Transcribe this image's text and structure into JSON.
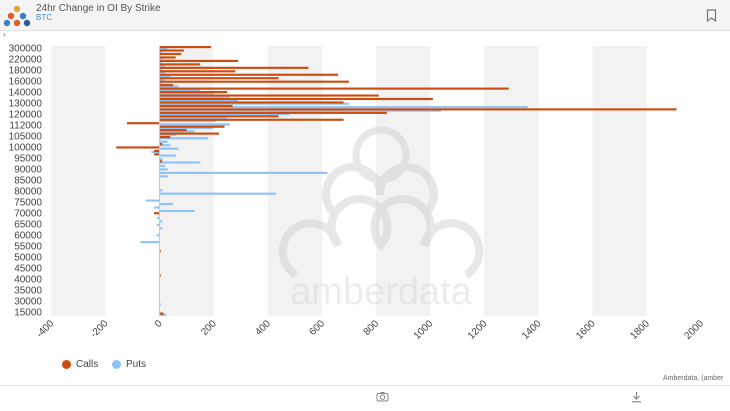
{
  "header": {
    "title": "24hr Change in OI By Strike",
    "subtitle": "BTC"
  },
  "credit": "Amberdata, (amber",
  "watermark_text": "amberdata",
  "colors": {
    "calls": "#cc4b0f",
    "puts": "#8fc3f7",
    "band": "#f2f2f2"
  },
  "icons": {
    "logo": "amberdata-logo-icon",
    "bookmark": "bookmark-icon",
    "camera": "camera-icon",
    "download": "download-icon",
    "expand": "chevron-right-icon"
  },
  "chart_data": {
    "type": "bar",
    "orientation": "horizontal",
    "title": "24hr Change in OI By Strike",
    "xlabel": "",
    "ylabel": "",
    "xlim": [
      -400,
      2000
    ],
    "x_ticks": [
      "-400",
      "-200",
      "0",
      "200",
      "400",
      "600",
      "800",
      "1000",
      "1200",
      "1400",
      "1600",
      "1800",
      "2000"
    ],
    "y_ticks": [
      "300000",
      "220000",
      "180000",
      "160000",
      "140000",
      "130000",
      "120000",
      "112000",
      "105000",
      "100000",
      "95000",
      "90000",
      "85000",
      "80000",
      "75000",
      "70000",
      "65000",
      "60000",
      "55000",
      "50000",
      "45000",
      "40000",
      "35000",
      "30000",
      "15000"
    ],
    "legend": "bottom-left",
    "series": [
      {
        "name": "Calls",
        "values": [
          190,
          90,
          80,
          60,
          290,
          150,
          550,
          280,
          660,
          440,
          700,
          50,
          1290,
          250,
          810,
          1010,
          680,
          270,
          1910,
          840,
          440,
          680,
          -120,
          240,
          100,
          220,
          40,
          0,
          10,
          -160,
          -20,
          -20,
          0,
          10,
          0,
          0,
          0,
          0,
          0,
          0,
          0,
          0,
          0,
          0,
          0,
          0,
          0,
          0,
          -20,
          0,
          0,
          0,
          0,
          0,
          0,
          0,
          0,
          0,
          0,
          5,
          0,
          0,
          0,
          0,
          0,
          0,
          5,
          0,
          0,
          0,
          0,
          0,
          0,
          0,
          0,
          0,
          0,
          15
        ]
      },
      {
        "name": "Puts",
        "values": [
          30,
          10,
          5,
          15,
          10,
          20,
          10,
          20,
          40,
          20,
          10,
          70,
          150,
          200,
          260,
          290,
          700,
          1360,
          1040,
          480,
          250,
          210,
          260,
          200,
          130,
          60,
          180,
          30,
          40,
          70,
          -30,
          60,
          10,
          150,
          20,
          30,
          620,
          30,
          0,
          0,
          0,
          10,
          430,
          0,
          -50,
          50,
          -20,
          130,
          0,
          -10,
          10,
          -10,
          10,
          0,
          -10,
          0,
          -70,
          0,
          0,
          0,
          0,
          0,
          0,
          0,
          0,
          0,
          0,
          0,
          0,
          0,
          0,
          0,
          0,
          0,
          5,
          0,
          0,
          25
        ]
      }
    ]
  }
}
